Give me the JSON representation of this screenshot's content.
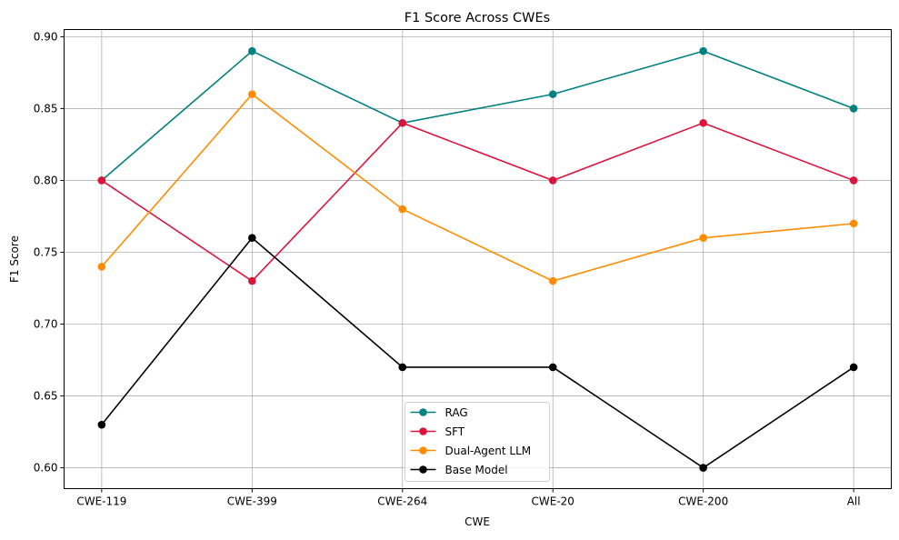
{
  "chart_data": {
    "type": "line",
    "title": "F1 Score Across CWEs",
    "xlabel": "CWE",
    "ylabel": "F1 Score",
    "categories": [
      "CWE-119",
      "CWE-399",
      "CWE-264",
      "CWE-20",
      "CWE-200",
      "All"
    ],
    "ylim": [
      0.5855,
      0.905
    ],
    "yticks": [
      "0.60",
      "0.65",
      "0.70",
      "0.75",
      "0.80",
      "0.85",
      "0.90"
    ],
    "grid": true,
    "legend_position": "bottom-center",
    "series": [
      {
        "name": "RAG",
        "color": "#008080",
        "marker": "circle",
        "values": [
          0.8,
          0.89,
          0.84,
          0.86,
          0.89,
          0.85
        ]
      },
      {
        "name": "SFT",
        "color": "#DC143C",
        "marker": "circle",
        "values": [
          0.8,
          0.73,
          0.84,
          0.8,
          0.84,
          0.8
        ]
      },
      {
        "name": "Dual-Agent LLM",
        "color": "#FF8C00",
        "marker": "circle",
        "values": [
          0.74,
          0.86,
          0.78,
          0.73,
          0.76,
          0.77
        ]
      },
      {
        "name": "Base Model",
        "color": "#000000",
        "marker": "circle",
        "values": [
          0.63,
          0.76,
          0.67,
          0.67,
          0.6,
          0.67
        ]
      }
    ]
  }
}
